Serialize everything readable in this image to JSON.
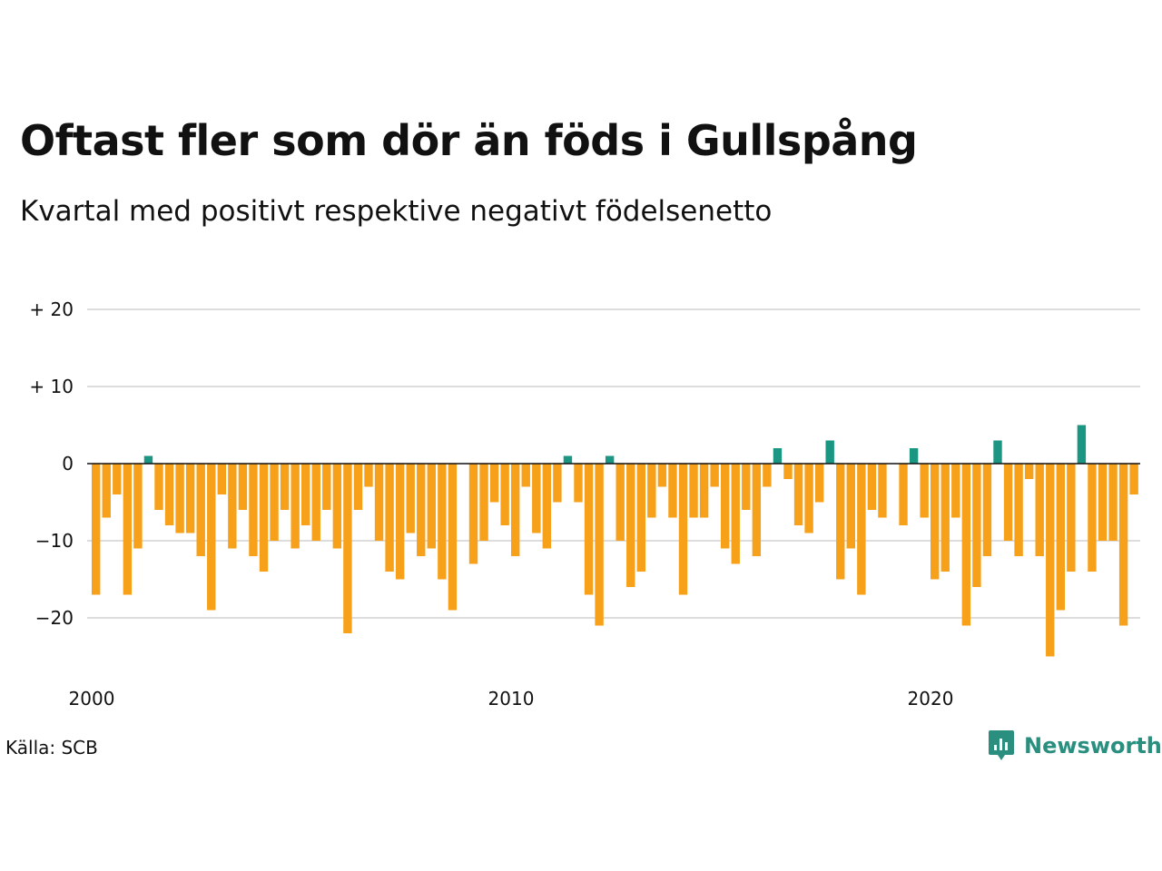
{
  "title": "Oftast fler som dör än föds i Gullspång",
  "subtitle": "Kvartal med positivt respektive negativt födelsenetto",
  "source": "Källa: SCB",
  "brand": {
    "name": "Newsworthy",
    "icon": "newsworthy-logo-icon",
    "color": "#2a8f7f"
  },
  "colors": {
    "positive": "#1a9682",
    "negative": "#f7a11a",
    "grid": "#dddddd",
    "zero": "#111111"
  },
  "chart_data": {
    "type": "bar",
    "title": "",
    "xlabel": "",
    "ylabel": "",
    "ylim": [
      -27,
      22
    ],
    "y_ticks": [
      {
        "value": 20,
        "label": "+ 20"
      },
      {
        "value": 10,
        "label": "+ 10"
      },
      {
        "value": 0,
        "label": "0"
      },
      {
        "value": -10,
        "label": "−10"
      },
      {
        "value": -20,
        "label": "−20"
      }
    ],
    "x_start_year": 2000,
    "x_ticks": [
      {
        "year": 2000,
        "label": "2000"
      },
      {
        "year": 2010,
        "label": "2010"
      },
      {
        "year": 2020,
        "label": "2020"
      }
    ],
    "grid": true,
    "values": [
      -17,
      -7,
      -4,
      -17,
      -11,
      1,
      -6,
      -8,
      -9,
      -9,
      -12,
      -19,
      -4,
      -11,
      -6,
      -12,
      -14,
      -10,
      -6,
      -11,
      -8,
      -10,
      -6,
      -11,
      -22,
      -6,
      -3,
      -10,
      -14,
      -15,
      -9,
      -12,
      -11,
      -15,
      -19,
      0,
      -13,
      -10,
      -5,
      -8,
      -12,
      -3,
      -9,
      -11,
      -5,
      1,
      -5,
      -17,
      -21,
      1,
      -10,
      -16,
      -14,
      -7,
      -3,
      -7,
      -17,
      -7,
      -7,
      -3,
      -11,
      -13,
      -6,
      -12,
      -3,
      2,
      -2,
      -8,
      -9,
      -5,
      3,
      -15,
      -11,
      -17,
      -6,
      -7,
      0,
      -8,
      2,
      -7,
      -15,
      -14,
      -7,
      -21,
      -16,
      -12,
      3,
      -10,
      -12,
      -2,
      -12,
      -25,
      -19,
      -14,
      5,
      -14,
      -10,
      -10,
      -21,
      -4
    ]
  }
}
